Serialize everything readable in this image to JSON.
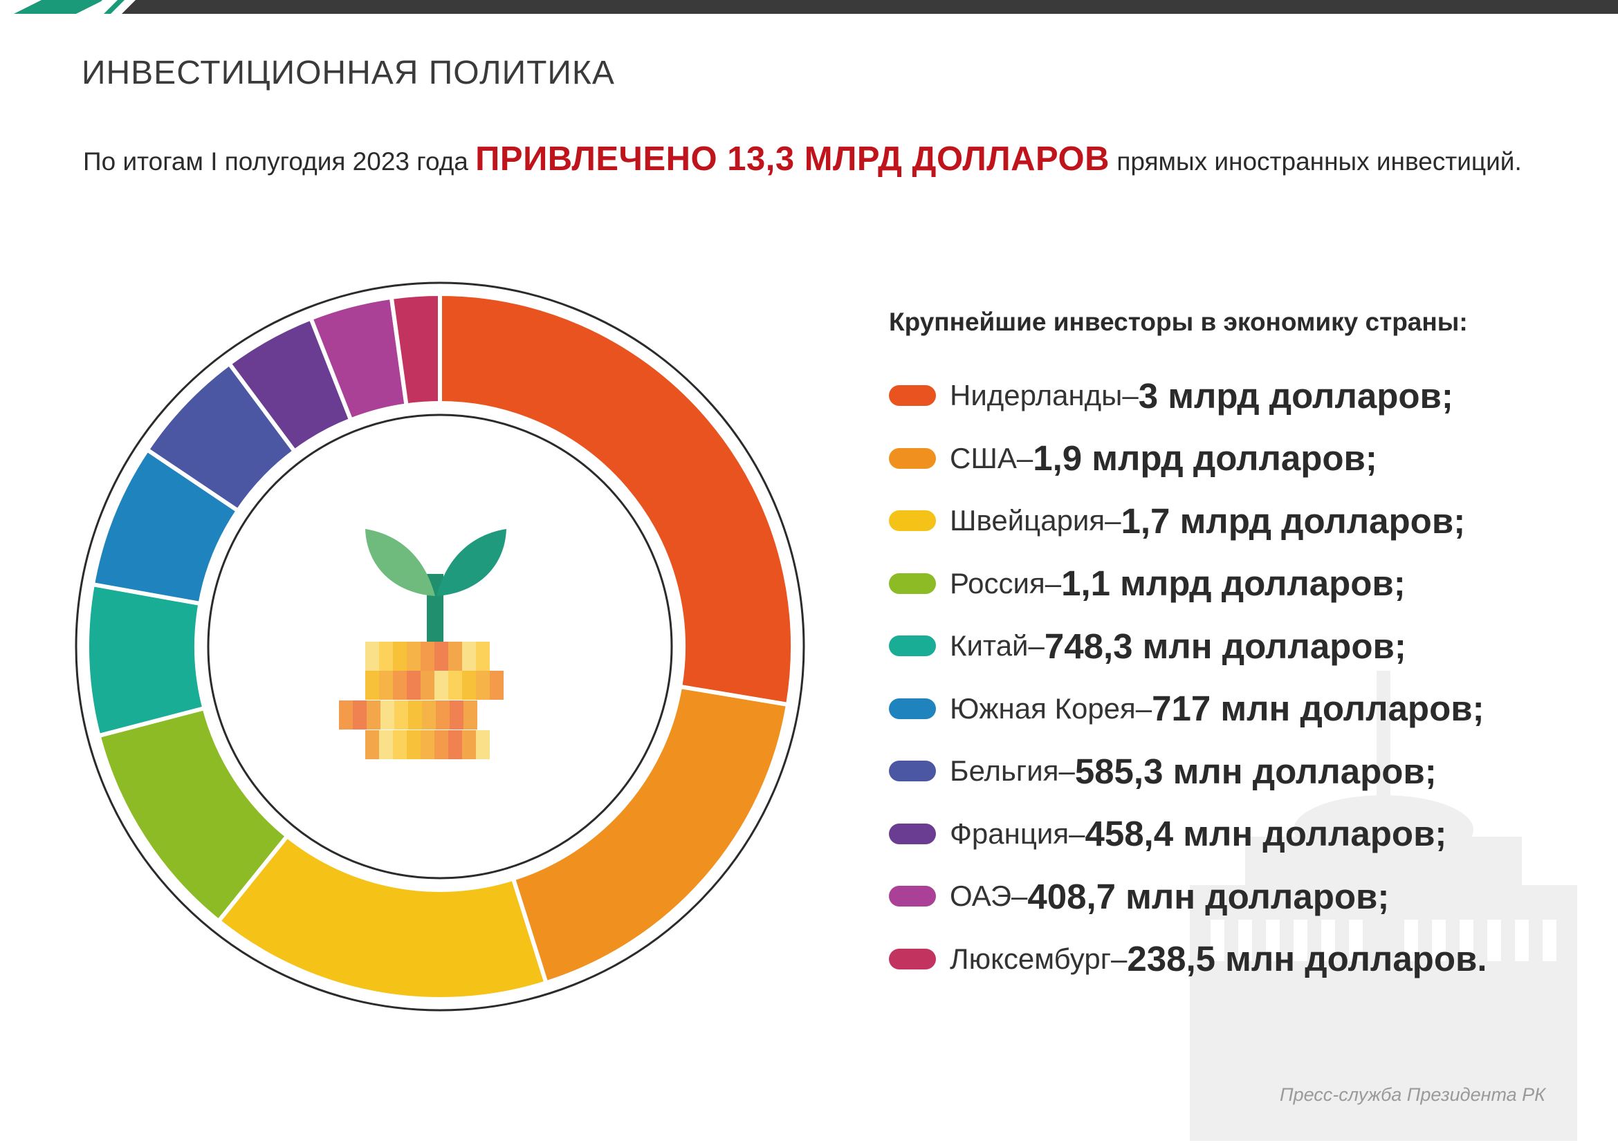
{
  "header": {
    "section_title": "ИНВЕСТИЦИОННАЯ ПОЛИТИКА",
    "headline_pre": "По итогам I полугодия 2023 года ",
    "headline_highlight": "ПРИВЛЕЧЕНО 13,3 МЛРД ДОЛЛАРОВ",
    "headline_post": " прямых иностранных инвестиций."
  },
  "colors": {
    "topbar_dark": "#3a3a3a",
    "topbar_green": "#1a9a78",
    "highlight": "#c0141d"
  },
  "center_icon": "sprout-on-coins-icon",
  "legend": {
    "title": "Крупнейшие инвесторы в экономику страны:",
    "items": [
      {
        "country": "Нидерланды",
        "sep": " – ",
        "value": "3 млрд долларов;"
      },
      {
        "country": "США",
        "sep": " – ",
        "value": "1,9 млрд долларов;"
      },
      {
        "country": "Швейцария",
        "sep": " – ",
        "value": "1,7 млрд долларов;"
      },
      {
        "country": "Россия",
        "sep": " – ",
        "value": "1,1 млрд долларов;"
      },
      {
        "country": "Китай",
        "sep": " – ",
        "value": "748,3 млн долларов;"
      },
      {
        "country": "Южная Корея",
        "sep": " – ",
        "value": "717 млн долларов;"
      },
      {
        "country": "Бельгия",
        "sep": " – ",
        "value": "585,3 млн долларов;"
      },
      {
        "country": "Франция",
        "sep": " – ",
        "value": "458,4 млн долларов;"
      },
      {
        "country": "ОАЭ",
        "sep": " – ",
        "value": "408,7 млн долларов;"
      },
      {
        "country": "Люксембург",
        "sep": " – ",
        "value": "238,5 млн долларов."
      }
    ]
  },
  "chart_data": {
    "type": "pie",
    "unit": "млн долларов",
    "categories": [
      "Нидерланды",
      "США",
      "Швейцария",
      "Россия",
      "Китай",
      "Южная Корея",
      "Бельгия",
      "Франция",
      "ОАЭ",
      "Люксембург"
    ],
    "values": [
      3000,
      1900,
      1700,
      1100,
      748.3,
      717,
      585.3,
      458.4,
      408.7,
      238.5
    ],
    "colors": [
      "#e8531f",
      "#f0901e",
      "#f5c317",
      "#8dbb25",
      "#19ad96",
      "#1f83bd",
      "#4c57a4",
      "#6a3d93",
      "#ab4197",
      "#c3335f"
    ],
    "donut": true,
    "legend_position": "right"
  },
  "footer": {
    "credit": "Пресс-служба Президента РК"
  }
}
